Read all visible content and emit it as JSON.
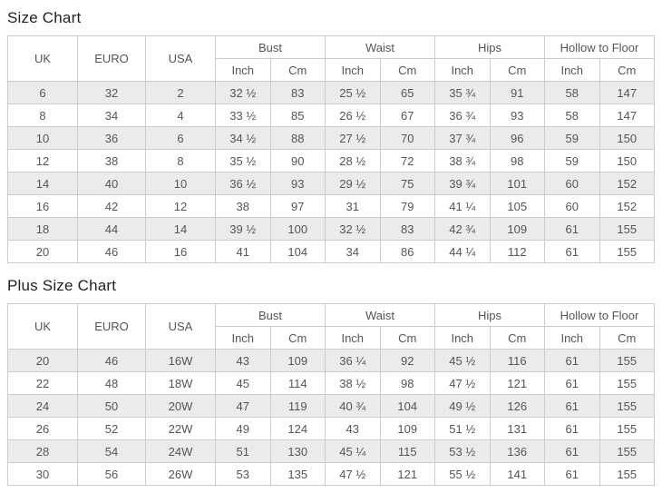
{
  "colors": {
    "stripe": "#ebebeb",
    "border": "#cccccc",
    "cell_text": "#555555",
    "title_text": "#222222"
  },
  "tables": [
    {
      "title": "Size Chart",
      "columns": [
        "UK",
        "EURO",
        "USA"
      ],
      "groups": [
        {
          "label": "Bust",
          "sub": [
            "Inch",
            "Cm"
          ]
        },
        {
          "label": "Waist",
          "sub": [
            "Inch",
            "Cm"
          ]
        },
        {
          "label": "Hips",
          "sub": [
            "Inch",
            "Cm"
          ]
        },
        {
          "label": "Hollow to Floor",
          "sub": [
            "Inch",
            "Cm"
          ]
        }
      ],
      "rows": [
        [
          "6",
          "32",
          "2",
          "32 ½",
          "83",
          "25 ½",
          "65",
          "35 ¾",
          "91",
          "58",
          "147"
        ],
        [
          "8",
          "34",
          "4",
          "33 ½",
          "85",
          "26 ½",
          "67",
          "36 ¾",
          "93",
          "58",
          "147"
        ],
        [
          "10",
          "36",
          "6",
          "34 ½",
          "88",
          "27 ½",
          "70",
          "37 ¾",
          "96",
          "59",
          "150"
        ],
        [
          "12",
          "38",
          "8",
          "35 ½",
          "90",
          "28 ½",
          "72",
          "38 ¾",
          "98",
          "59",
          "150"
        ],
        [
          "14",
          "40",
          "10",
          "36 ½",
          "93",
          "29 ½",
          "75",
          "39 ¾",
          "101",
          "60",
          "152"
        ],
        [
          "16",
          "42",
          "12",
          "38",
          "97",
          "31",
          "79",
          "41 ¼",
          "105",
          "60",
          "152"
        ],
        [
          "18",
          "44",
          "14",
          "39 ½",
          "100",
          "32 ½",
          "83",
          "42 ¾",
          "109",
          "61",
          "155"
        ],
        [
          "20",
          "46",
          "16",
          "41",
          "104",
          "34",
          "86",
          "44 ¼",
          "112",
          "61",
          "155"
        ]
      ]
    },
    {
      "title": "Plus Size Chart",
      "columns": [
        "UK",
        "EURO",
        "USA"
      ],
      "groups": [
        {
          "label": "Bust",
          "sub": [
            "Inch",
            "Cm"
          ]
        },
        {
          "label": "Waist",
          "sub": [
            "Inch",
            "Cm"
          ]
        },
        {
          "label": "Hips",
          "sub": [
            "Inch",
            "Cm"
          ]
        },
        {
          "label": "Hollow to Floor",
          "sub": [
            "Inch",
            "Cm"
          ]
        }
      ],
      "rows": [
        [
          "20",
          "46",
          "16W",
          "43",
          "109",
          "36 ¼",
          "92",
          "45 ½",
          "116",
          "61",
          "155"
        ],
        [
          "22",
          "48",
          "18W",
          "45",
          "114",
          "38 ½",
          "98",
          "47 ½",
          "121",
          "61",
          "155"
        ],
        [
          "24",
          "50",
          "20W",
          "47",
          "119",
          "40 ¾",
          "104",
          "49 ½",
          "126",
          "61",
          "155"
        ],
        [
          "26",
          "52",
          "22W",
          "49",
          "124",
          "43",
          "109",
          "51 ½",
          "131",
          "61",
          "155"
        ],
        [
          "28",
          "54",
          "24W",
          "51",
          "130",
          "45 ¼",
          "115",
          "53 ½",
          "136",
          "61",
          "155"
        ],
        [
          "30",
          "56",
          "26W",
          "53",
          "135",
          "47 ½",
          "121",
          "55 ½",
          "141",
          "61",
          "155"
        ]
      ]
    }
  ]
}
